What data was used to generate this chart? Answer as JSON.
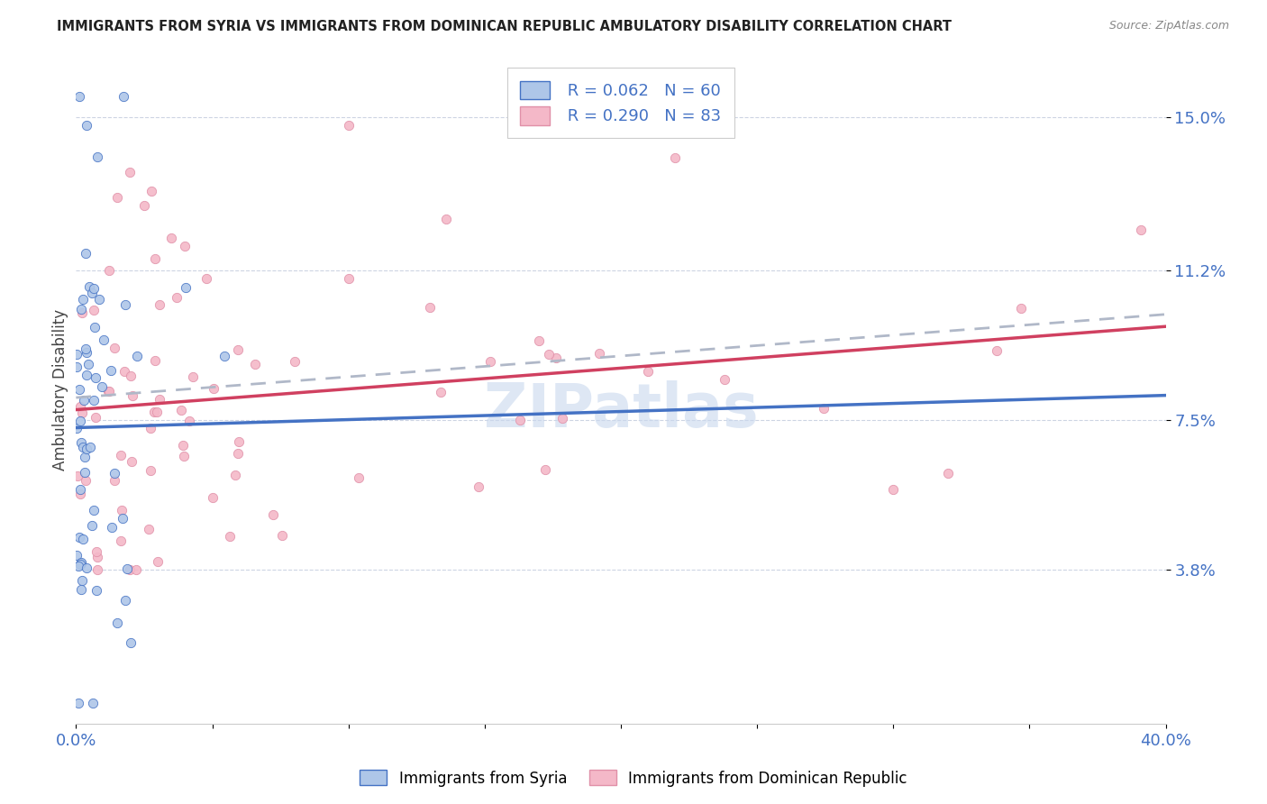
{
  "title": "IMMIGRANTS FROM SYRIA VS IMMIGRANTS FROM DOMINICAN REPUBLIC AMBULATORY DISABILITY CORRELATION CHART",
  "source": "Source: ZipAtlas.com",
  "ylabel": "Ambulatory Disability",
  "ytick_labels": [
    "3.8%",
    "7.5%",
    "11.2%",
    "15.0%"
  ],
  "ytick_values": [
    0.038,
    0.075,
    0.112,
    0.15
  ],
  "xlim": [
    0.0,
    0.4
  ],
  "ylim": [
    0.0,
    0.165
  ],
  "legend_syria_R": "0.062",
  "legend_syria_N": "60",
  "legend_dr_R": "0.290",
  "legend_dr_N": "83",
  "syria_face_color": "#aec6e8",
  "syria_edge_color": "#4472c4",
  "dr_face_color": "#f4b8c8",
  "dr_edge_color": "#e090a8",
  "syria_line_color": "#4472c4",
  "dr_line_color": "#d04060",
  "dash_line_color": "#b0b8c8",
  "watermark_color": "#c8d8ee",
  "text_color": "#4472c4",
  "title_color": "#222222",
  "source_color": "#888888",
  "grid_color": "#c8d0e0",
  "bottom_legend_label1": "Immigrants from Syria",
  "bottom_legend_label2": "Immigrants from Dominican Republic"
}
